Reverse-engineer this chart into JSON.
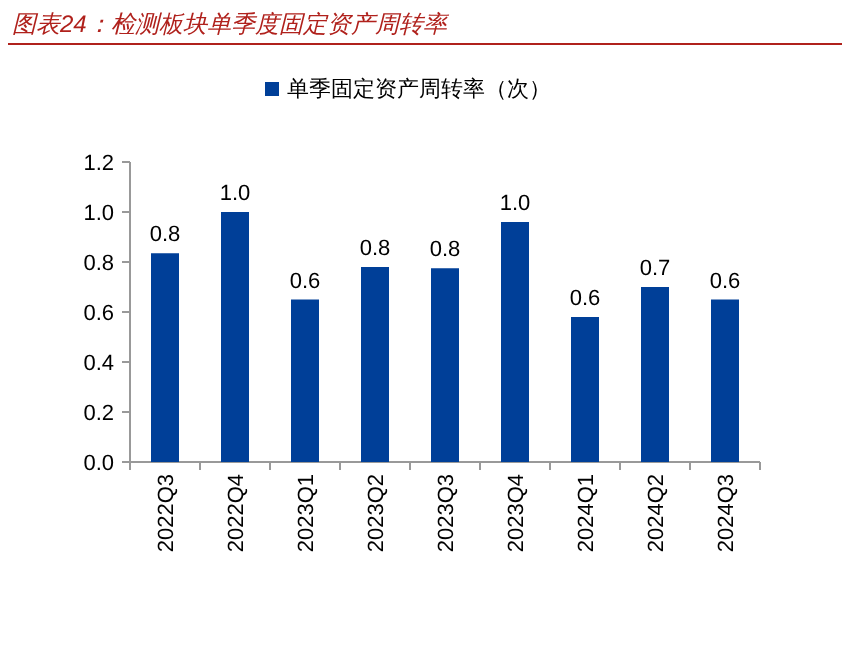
{
  "chart_data": {
    "type": "bar",
    "title": "图表24：检测板块单季度固定资产周转率",
    "categories": [
      "2022Q3",
      "2022Q4",
      "2023Q1",
      "2023Q2",
      "2023Q3",
      "2023Q4",
      "2024Q1",
      "2024Q2",
      "2024Q3"
    ],
    "series": [
      {
        "name": "单季固定资产周转率（次）",
        "color": "#003f98",
        "values": [
          0.835,
          1.0,
          0.65,
          0.78,
          0.775,
          0.96,
          0.58,
          0.7,
          0.65
        ]
      }
    ],
    "value_labels": [
      "0.8",
      "1.0",
      "0.6",
      "0.8",
      "0.8",
      "1.0",
      "0.6",
      "0.7",
      "0.6"
    ],
    "ylim": [
      0,
      1.2
    ],
    "yticks": [
      {
        "value": 0,
        "label": "0.0"
      },
      {
        "value": 0.2,
        "label": "0.2"
      },
      {
        "value": 0.4,
        "label": "0.4"
      },
      {
        "value": 0.6,
        "label": "0.6"
      },
      {
        "value": 0.8,
        "label": "0.8"
      },
      {
        "value": 1.0,
        "label": "1.0"
      },
      {
        "value": 1.2,
        "label": "1.2"
      }
    ],
    "legend": "top",
    "grid": false
  }
}
